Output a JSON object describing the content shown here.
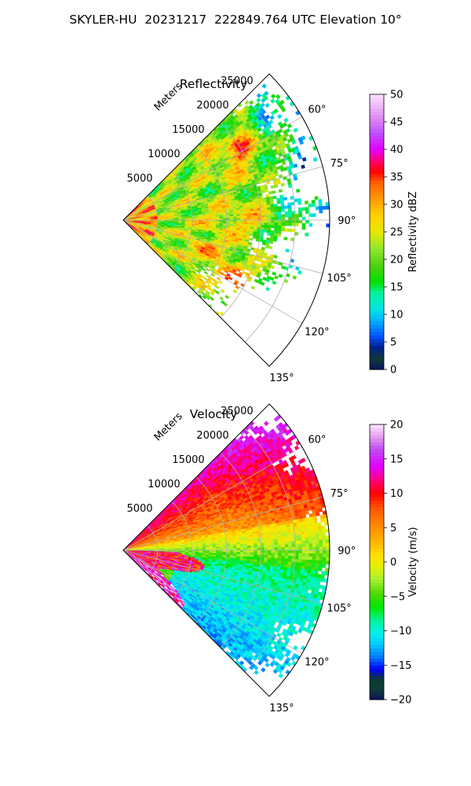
{
  "figure": {
    "title": "SKYLER-HU  20231217  222849.764 UTC Elevation 10°"
  },
  "chart_data": [
    {
      "type": "heatmap",
      "projection": "polar-sector",
      "title": "Reflectivity",
      "radial_label": "Meters",
      "radial_ticks": [
        5000,
        10000,
        15000,
        20000,
        25000
      ],
      "radial_tick_labels": [
        "5000",
        "10000",
        "15000",
        "20000",
        "25000"
      ],
      "angle_ticks_deg": [
        60,
        75,
        90,
        105,
        120,
        135
      ],
      "angle_tick_labels": [
        "60°",
        "75°",
        "90°",
        "105°",
        "120°",
        "135°"
      ],
      "azimuth_range_deg": [
        45,
        135
      ],
      "range_max_m": 30000,
      "grid": true,
      "colorbar": {
        "label": "Reflectivity dBZ",
        "range": [
          0,
          50
        ],
        "ticks": [
          0,
          5,
          10,
          15,
          20,
          25,
          30,
          35,
          40,
          45,
          50
        ],
        "tick_labels": [
          "0",
          "5",
          "10",
          "15",
          "20",
          "25",
          "30",
          "35",
          "40",
          "45",
          "50"
        ]
      }
    },
    {
      "type": "heatmap",
      "projection": "polar-sector",
      "title": "Velocity",
      "radial_label": "Meters",
      "radial_ticks": [
        5000,
        10000,
        15000,
        20000,
        25000
      ],
      "radial_tick_labels": [
        "5000",
        "10000",
        "15000",
        "20000",
        "25000"
      ],
      "angle_ticks_deg": [
        60,
        75,
        90,
        105,
        120,
        135
      ],
      "angle_tick_labels": [
        "60°",
        "75°",
        "90°",
        "105°",
        "120°",
        "135°"
      ],
      "azimuth_range_deg": [
        45,
        135
      ],
      "range_max_m": 30000,
      "grid": true,
      "colorbar": {
        "label": "Velocity (m/s)",
        "range": [
          -20,
          20
        ],
        "ticks": [
          -20,
          -15,
          -10,
          -5,
          0,
          5,
          10,
          15,
          20
        ],
        "tick_labels": [
          "−20",
          "−15",
          "−10",
          "−5",
          "0",
          "5",
          "10",
          "15",
          "20"
        ]
      }
    }
  ]
}
